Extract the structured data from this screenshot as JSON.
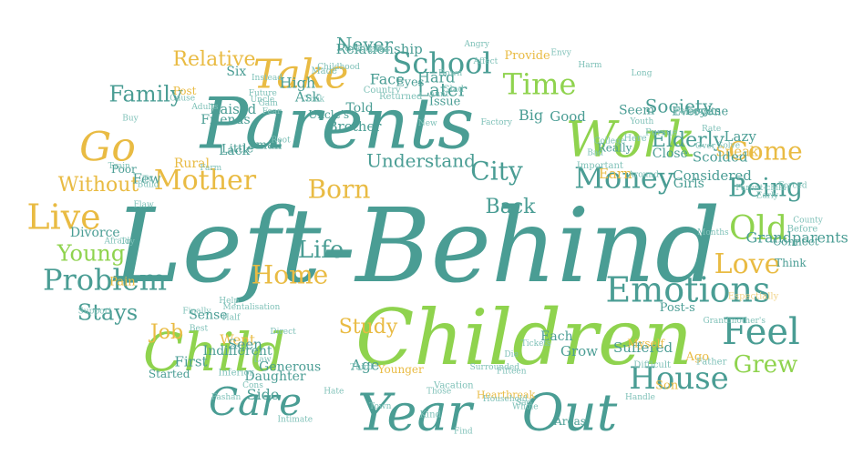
{
  "colors": {
    "teal": "#4a9d94",
    "green": "#8fd34e",
    "gold": "#e9bb43",
    "pale_teal": "#7fc1b8",
    "pale_green": "#b9e38a",
    "pale_gold": "#f1d48a"
  },
  "cloud": {
    "shape": "ellipse",
    "words": [
      {
        "text": "Left-Behind",
        "weight": 100,
        "color": "teal"
      },
      {
        "text": "Children",
        "weight": 85,
        "color": "green"
      },
      {
        "text": "Parents",
        "weight": 80,
        "color": "teal"
      },
      {
        "text": "Child",
        "weight": 60,
        "color": "green"
      },
      {
        "text": "Year",
        "weight": 55,
        "color": "teal"
      },
      {
        "text": "Out",
        "weight": 55,
        "color": "teal"
      },
      {
        "text": "Work",
        "weight": 50,
        "color": "green"
      },
      {
        "text": "Take",
        "weight": 45,
        "color": "gold"
      },
      {
        "text": "Go",
        "weight": 42,
        "color": "gold"
      },
      {
        "text": "Care",
        "weight": 40,
        "color": "teal"
      },
      {
        "text": "Emotions",
        "weight": 38,
        "color": "teal"
      },
      {
        "text": "Feel",
        "weight": 36,
        "color": "teal"
      },
      {
        "text": "Live",
        "weight": 35,
        "color": "gold"
      },
      {
        "text": "Money",
        "weight": 34,
        "color": "teal"
      },
      {
        "text": "Old",
        "weight": 33,
        "color": "green"
      },
      {
        "text": "House",
        "weight": 32,
        "color": "teal"
      },
      {
        "text": "Time",
        "weight": 31,
        "color": "green"
      },
      {
        "text": "Problem",
        "weight": 30,
        "color": "teal"
      },
      {
        "text": "School",
        "weight": 29,
        "color": "teal"
      },
      {
        "text": "Mother",
        "weight": 28,
        "color": "gold"
      },
      {
        "text": "Love",
        "weight": 28,
        "color": "gold"
      },
      {
        "text": "Being",
        "weight": 27,
        "color": "teal"
      },
      {
        "text": "Come",
        "weight": 27,
        "color": "gold"
      },
      {
        "text": "Home",
        "weight": 26,
        "color": "gold"
      },
      {
        "text": "Born",
        "weight": 26,
        "color": "gold"
      },
      {
        "text": "City",
        "weight": 25,
        "color": "teal"
      },
      {
        "text": "Life",
        "weight": 25,
        "color": "teal"
      },
      {
        "text": "Grew",
        "weight": 24,
        "color": "green"
      },
      {
        "text": "Family",
        "weight": 23,
        "color": "teal"
      },
      {
        "text": "Stays",
        "weight": 22,
        "color": "teal"
      },
      {
        "text": "Young",
        "weight": 22,
        "color": "green"
      },
      {
        "text": "Without",
        "weight": 22,
        "color": "gold"
      },
      {
        "text": "Never",
        "weight": 21,
        "color": "teal"
      },
      {
        "text": "Relative",
        "weight": 21,
        "color": "gold"
      },
      {
        "text": "Later",
        "weight": 21,
        "color": "teal"
      },
      {
        "text": "Understand",
        "weight": 20,
        "color": "teal"
      },
      {
        "text": "Society",
        "weight": 20,
        "color": "teal"
      },
      {
        "text": "Elderly",
        "weight": 20,
        "color": "teal"
      },
      {
        "text": "Back",
        "weight": 20,
        "color": "teal"
      },
      {
        "text": "Study",
        "weight": 20,
        "color": "gold"
      },
      {
        "text": "Job",
        "weight": 20,
        "color": "gold"
      },
      {
        "text": "Grandparents",
        "weight": 19,
        "color": "teal"
      },
      {
        "text": "Age",
        "weight": 19,
        "color": "teal"
      },
      {
        "text": "Face",
        "weight": 19,
        "color": "teal"
      },
      {
        "text": "Side",
        "weight": 19,
        "color": "teal"
      },
      {
        "text": "Hard",
        "weight": 19,
        "color": "teal"
      },
      {
        "text": "High",
        "weight": 19,
        "color": "teal"
      },
      {
        "text": "Big",
        "weight": 19,
        "color": "teal"
      },
      {
        "text": "First",
        "weight": 18,
        "color": "teal"
      },
      {
        "text": "Brother",
        "weight": 18,
        "color": "teal"
      },
      {
        "text": "Ask",
        "weight": 18,
        "color": "teal"
      },
      {
        "text": "Speak",
        "weight": 18,
        "color": "gold"
      },
      {
        "text": "Suffered",
        "weight": 18,
        "color": "teal"
      },
      {
        "text": "Scolded",
        "weight": 18,
        "color": "teal"
      },
      {
        "text": "Raised",
        "weight": 18,
        "color": "teal"
      },
      {
        "text": "Lazy",
        "weight": 18,
        "color": "teal"
      },
      {
        "text": "Went",
        "weight": 18,
        "color": "gold"
      },
      {
        "text": "Good",
        "weight": 18,
        "color": "teal"
      },
      {
        "text": "Grow",
        "weight": 18,
        "color": "teal"
      },
      {
        "text": "Considered",
        "weight": 18,
        "color": "teal"
      },
      {
        "text": "Relationship",
        "weight": 18,
        "color": "teal"
      },
      {
        "text": "Few",
        "weight": 18,
        "color": "teal"
      },
      {
        "text": "Earn",
        "weight": 18,
        "color": "gold"
      },
      {
        "text": "Seen",
        "weight": 18,
        "color": "teal"
      },
      {
        "text": "Six",
        "weight": 17,
        "color": "teal"
      },
      {
        "text": "Sense",
        "weight": 17,
        "color": "teal"
      },
      {
        "text": "Indifferent",
        "weight": 17,
        "color": "teal"
      },
      {
        "text": "Daughter",
        "weight": 17,
        "color": "teal"
      },
      {
        "text": "Lack",
        "weight": 17,
        "color": "teal"
      },
      {
        "text": "Close",
        "weight": 17,
        "color": "teal"
      },
      {
        "text": "Seem",
        "weight": 16,
        "color": "teal"
      },
      {
        "text": "Friends",
        "weight": 16,
        "color": "teal"
      },
      {
        "text": "Divorce",
        "weight": 16,
        "color": "teal"
      },
      {
        "text": "Girls",
        "weight": 16,
        "color": "teal"
      },
      {
        "text": "Told",
        "weight": 16,
        "color": "teal"
      },
      {
        "text": "Rural",
        "weight": 16,
        "color": "gold"
      },
      {
        "text": "Generous",
        "weight": 16,
        "color": "teal"
      },
      {
        "text": "Provide",
        "weight": 15,
        "color": "gold"
      },
      {
        "text": "Ago",
        "weight": 15,
        "color": "gold"
      },
      {
        "text": "Post-s",
        "weight": 15,
        "color": "teal"
      },
      {
        "text": "Each",
        "weight": 16,
        "color": "teal"
      },
      {
        "text": "Small",
        "weight": 15,
        "color": "teal"
      },
      {
        "text": "Pain",
        "weight": 15,
        "color": "gold"
      },
      {
        "text": "Son",
        "weight": 15,
        "color": "gold"
      },
      {
        "text": "Everyone",
        "weight": 15,
        "color": "teal"
      },
      {
        "text": "Looks",
        "weight": 15,
        "color": "teal"
      },
      {
        "text": "Issue",
        "weight": 15,
        "color": "teal"
      },
      {
        "text": "Little",
        "weight": 15,
        "color": "teal"
      },
      {
        "text": "Eyes",
        "weight": 15,
        "color": "teal"
      },
      {
        "text": "Uncle's",
        "weight": 14,
        "color": "teal"
      },
      {
        "text": "Really",
        "weight": 14,
        "color": "teal"
      },
      {
        "text": "Started",
        "weight": 14,
        "color": "teal"
      },
      {
        "text": "Myself",
        "weight": 14,
        "color": "gold"
      },
      {
        "text": "Connect",
        "weight": 14,
        "color": "teal"
      },
      {
        "text": "Post",
        "weight": 14,
        "color": "gold"
      },
      {
        "text": "Think",
        "weight": 14,
        "color": "teal"
      },
      {
        "text": "Areas",
        "weight": 14,
        "color": "teal"
      },
      {
        "text": "Poor",
        "weight": 14,
        "color": "teal"
      },
      {
        "text": "Younger",
        "weight": 14,
        "color": "gold"
      },
      {
        "text": "Heartbreak",
        "weight": 13,
        "color": "gold"
      },
      {
        "text": "Espectially",
        "weight": 12,
        "color": "gold"
      },
      {
        "text": "Made",
        "weight": 12,
        "color": "teal"
      },
      {
        "text": "Father",
        "weight": 12,
        "color": "teal"
      },
      {
        "text": "Difficult",
        "weight": 12,
        "color": "teal"
      },
      {
        "text": "Important",
        "weight": 12,
        "color": "teal"
      },
      {
        "text": "Personal",
        "weight": 12,
        "color": "teal"
      },
      {
        "text": "Before",
        "weight": 12,
        "color": "teal"
      },
      {
        "text": "Glad",
        "weight": 12,
        "color": "teal"
      },
      {
        "text": "Kind",
        "weight": 12,
        "color": "teal"
      },
      {
        "text": "Here",
        "weight": 12,
        "color": "teal"
      },
      {
        "text": "Vacation",
        "weight": 12,
        "color": "teal"
      },
      {
        "text": "Pursue",
        "weight": 12,
        "color": "teal"
      },
      {
        "text": "Inferior",
        "weight": 12,
        "color": "teal"
      },
      {
        "text": "Returned",
        "weight": 12,
        "color": "teal"
      },
      {
        "text": "Country",
        "weight": 12,
        "color": "teal"
      },
      {
        "text": "Fifteen",
        "weight": 11,
        "color": "teal"
      },
      {
        "text": "County",
        "weight": 11,
        "color": "teal"
      },
      {
        "text": "Cause",
        "weight": 11,
        "color": "teal"
      },
      {
        "text": "Around",
        "weight": 11,
        "color": "teal"
      },
      {
        "text": "Root",
        "weight": 11,
        "color": "teal"
      },
      {
        "text": "Afraid",
        "weight": 11,
        "color": "teal"
      },
      {
        "text": "Angry",
        "weight": 11,
        "color": "teal"
      },
      {
        "text": "Gain",
        "weight": 11,
        "color": "teal"
      },
      {
        "text": "Tv",
        "weight": 11,
        "color": "teal"
      },
      {
        "text": "Aunt",
        "weight": 11,
        "color": "teal"
      },
      {
        "text": "New",
        "weight": 11,
        "color": "teal"
      },
      {
        "text": "Hate",
        "weight": 11,
        "color": "teal"
      },
      {
        "text": "Whole",
        "weight": 11,
        "color": "teal"
      },
      {
        "text": "Third",
        "weight": 11,
        "color": "teal"
      },
      {
        "text": "Fear",
        "weight": 11,
        "color": "teal"
      },
      {
        "text": "Grandmother's",
        "weight": 11,
        "color": "teal"
      },
      {
        "text": "Harm",
        "weight": 11,
        "color": "teal"
      },
      {
        "text": "Over",
        "weight": 11,
        "color": "teal"
      },
      {
        "text": "Down",
        "weight": 11,
        "color": "teal"
      },
      {
        "text": "Graduated",
        "weight": 11,
        "color": "teal"
      },
      {
        "text": "Buy",
        "weight": 11,
        "color": "teal"
      },
      {
        "text": "Die",
        "weight": 11,
        "color": "teal"
      },
      {
        "text": "Sad",
        "weight": 11,
        "color": "teal"
      },
      {
        "text": "Those",
        "weight": 11,
        "color": "teal"
      },
      {
        "text": "Months",
        "weight": 11,
        "color": "teal"
      },
      {
        "text": "Instead",
        "weight": 11,
        "color": "teal"
      },
      {
        "text": "Best",
        "weight": 11,
        "color": "teal"
      },
      {
        "text": "Envy",
        "weight": 11,
        "color": "teal"
      },
      {
        "text": "Handle",
        "weight": 11,
        "color": "teal"
      },
      {
        "text": "Household",
        "weight": 11,
        "color": "teal"
      },
      {
        "text": "Tickets",
        "weight": 11,
        "color": "teal"
      },
      {
        "text": "Town",
        "weight": 11,
        "color": "teal"
      },
      {
        "text": "Build",
        "weight": 11,
        "color": "teal"
      },
      {
        "text": "Finally",
        "weight": 11,
        "color": "teal"
      },
      {
        "text": "Help",
        "weight": 11,
        "color": "teal"
      },
      {
        "text": "Find",
        "weight": 11,
        "color": "teal"
      },
      {
        "text": "Affect",
        "weight": 11,
        "color": "teal"
      },
      {
        "text": "Support",
        "weight": 11,
        "color": "teal"
      },
      {
        "text": "Early",
        "weight": 11,
        "color": "teal"
      },
      {
        "text": "Uncle",
        "weight": 11,
        "color": "teal"
      },
      {
        "text": "Law",
        "weight": 11,
        "color": "teal"
      },
      {
        "text": "Try",
        "weight": 11,
        "color": "teal"
      },
      {
        "text": "Train",
        "weight": 11,
        "color": "teal"
      },
      {
        "text": "Future",
        "weight": 11,
        "color": "teal"
      },
      {
        "text": "Less",
        "weight": 11,
        "color": "teal"
      },
      {
        "text": "Long",
        "weight": 11,
        "color": "teal"
      },
      {
        "text": "Forced",
        "weight": 11,
        "color": "teal"
      },
      {
        "text": "Direct",
        "weight": 11,
        "color": "teal"
      },
      {
        "text": "Fashan",
        "weight": 11,
        "color": "teal"
      },
      {
        "text": "Childhood",
        "weight": 10,
        "color": "teal"
      },
      {
        "text": "Parent-child",
        "weight": 10,
        "color": "teal"
      },
      {
        "text": "Surrounded",
        "weight": 10,
        "color": "teal"
      },
      {
        "text": "Factory",
        "weight": 10,
        "color": "teal"
      },
      {
        "text": "Solve",
        "weight": 10,
        "color": "teal"
      },
      {
        "text": "Adults",
        "weight": 10,
        "color": "teal"
      },
      {
        "text": "Flaw",
        "weight": 10,
        "color": "teal"
      },
      {
        "text": "Youth",
        "weight": 10,
        "color": "teal"
      },
      {
        "text": "College",
        "weight": 10,
        "color": "teal"
      },
      {
        "text": "Took",
        "weight": 10,
        "color": "teal"
      },
      {
        "text": "Half",
        "weight": 10,
        "color": "teal"
      },
      {
        "text": "Farm",
        "weight": 10,
        "color": "teal"
      },
      {
        "text": "Rate",
        "weight": 10,
        "color": "teal"
      },
      {
        "text": "Cons",
        "weight": 10,
        "color": "teal"
      },
      {
        "text": "Bad",
        "weight": 10,
        "color": "teal"
      },
      {
        "text": "Intimate",
        "weight": 10,
        "color": "teal"
      },
      {
        "text": "Mentalisation",
        "weight": 10,
        "color": "teal"
      }
    ]
  }
}
